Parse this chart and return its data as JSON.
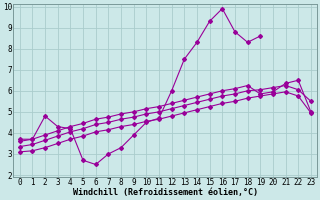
{
  "xlabel": "Windchill (Refroidissement éolien,°C)",
  "x_values": [
    0,
    1,
    2,
    3,
    4,
    5,
    6,
    7,
    8,
    9,
    10,
    11,
    12,
    13,
    14,
    15,
    16,
    17,
    18,
    19,
    20,
    21,
    22,
    23
  ],
  "line1": [
    3.7,
    3.7,
    4.8,
    4.3,
    4.2,
    2.7,
    2.5,
    3.0,
    3.3,
    3.9,
    4.5,
    4.7,
    6.0,
    7.5,
    8.3,
    9.3,
    9.9,
    8.8,
    8.3,
    8.6,
    null,
    null,
    null,
    null
  ],
  "line2": [
    3.1,
    3.15,
    3.3,
    3.5,
    3.7,
    3.85,
    4.05,
    4.15,
    4.3,
    4.4,
    4.55,
    4.65,
    4.8,
    4.95,
    5.1,
    5.25,
    5.4,
    5.5,
    5.65,
    5.75,
    5.85,
    5.95,
    5.75,
    4.95
  ],
  "line3": [
    3.35,
    3.45,
    3.65,
    3.85,
    4.05,
    4.2,
    4.4,
    4.5,
    4.65,
    4.75,
    4.9,
    5.0,
    5.15,
    5.3,
    5.45,
    5.6,
    5.75,
    5.85,
    6.0,
    6.05,
    6.15,
    6.25,
    6.05,
    5.5
  ],
  "line4": [
    3.6,
    3.7,
    3.9,
    4.1,
    4.3,
    4.45,
    4.65,
    4.75,
    4.9,
    5.0,
    5.15,
    5.25,
    5.4,
    5.55,
    5.7,
    5.85,
    6.0,
    6.1,
    6.25,
    5.85,
    5.95,
    6.35,
    6.5,
    5.0
  ],
  "line_color": "#990099",
  "bg_color": "#cce8e8",
  "grid_color": "#aacccc",
  "ylim": [
    2,
    10
  ],
  "xlim": [
    -0.5,
    23.5
  ],
  "yticks": [
    2,
    3,
    4,
    5,
    6,
    7,
    8,
    9,
    10
  ],
  "xticks": [
    0,
    1,
    2,
    3,
    4,
    5,
    6,
    7,
    8,
    9,
    10,
    11,
    12,
    13,
    14,
    15,
    16,
    17,
    18,
    19,
    20,
    21,
    22,
    23
  ],
  "xlabel_fontsize": 6,
  "tick_fontsize": 5.5
}
